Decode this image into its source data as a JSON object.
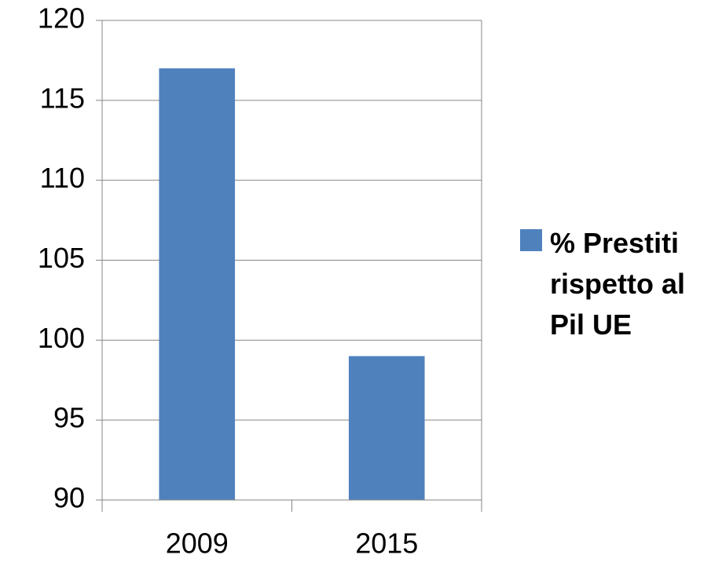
{
  "chart_data": {
    "type": "bar",
    "categories": [
      "2009",
      "2015"
    ],
    "series": [
      {
        "name": "% Prestiti rispetto al Pil UE",
        "color": "#4f81bd",
        "values": [
          117,
          99
        ]
      }
    ],
    "ylim": [
      90,
      120
    ],
    "yticks": [
      90,
      95,
      100,
      105,
      110,
      115,
      120
    ],
    "grid": true,
    "legend": "right"
  }
}
